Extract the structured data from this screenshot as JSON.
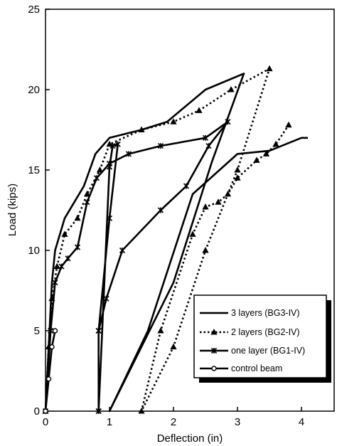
{
  "chart_data": {
    "type": "line",
    "title": "",
    "xlabel": "Deflection (in)",
    "ylabel": "Load (kips)",
    "xlim": [
      0,
      4.6
    ],
    "ylim": [
      0,
      25
    ],
    "xticks": [
      "0",
      "1",
      "2",
      "3",
      "4"
    ],
    "yticks": [
      "0",
      "5",
      "10",
      "15",
      "20",
      "25"
    ],
    "grid": false,
    "legend_position": "bottom-right",
    "series": [
      {
        "name": "3 layers (BG3-IV)",
        "style": "solid",
        "marker": "none",
        "points": [
          [
            0,
            0
          ],
          [
            0.05,
            4
          ],
          [
            0.1,
            8
          ],
          [
            0.15,
            10
          ],
          [
            0.3,
            12
          ],
          [
            0.6,
            14
          ],
          [
            0.78,
            16
          ],
          [
            1.0,
            17
          ],
          [
            1.5,
            17.5
          ],
          [
            1.9,
            18
          ],
          [
            2.2,
            19
          ],
          [
            2.5,
            20
          ],
          [
            3.1,
            21
          ],
          [
            2.6,
            15.5
          ],
          [
            2.0,
            8
          ],
          [
            1.0,
            0
          ],
          [
            1.6,
            5
          ],
          [
            2.3,
            13.5
          ],
          [
            3.0,
            16
          ],
          [
            3.5,
            16.2
          ],
          [
            4.0,
            17
          ],
          [
            4.1,
            17
          ]
        ]
      },
      {
        "name": "2 layers (BG2-IV)",
        "style": "dotted",
        "marker": "triangle",
        "points": [
          [
            0,
            0
          ],
          [
            0.05,
            4
          ],
          [
            0.1,
            7
          ],
          [
            0.18,
            9
          ],
          [
            0.3,
            11
          ],
          [
            0.5,
            12
          ],
          [
            0.65,
            13.5
          ],
          [
            0.85,
            15
          ],
          [
            1.0,
            16.6
          ],
          [
            1.5,
            17.5
          ],
          [
            2.0,
            18
          ],
          [
            2.4,
            18.7
          ],
          [
            2.9,
            20
          ],
          [
            3.5,
            21.3
          ],
          [
            3.0,
            15
          ],
          [
            2.5,
            10
          ],
          [
            2.0,
            4
          ],
          [
            1.5,
            0
          ],
          [
            1.8,
            5
          ],
          [
            2.3,
            11
          ],
          [
            2.5,
            12.7
          ],
          [
            2.7,
            13
          ],
          [
            2.85,
            13.5
          ],
          [
            3.0,
            14.5
          ],
          [
            3.3,
            15.6
          ],
          [
            3.45,
            16
          ],
          [
            3.6,
            16.6
          ],
          [
            3.8,
            17.8
          ]
        ]
      },
      {
        "name": "one layer (BG1-IV)",
        "style": "solid",
        "marker": "asterisk",
        "points": [
          [
            0,
            0
          ],
          [
            0.08,
            5
          ],
          [
            0.15,
            8
          ],
          [
            0.25,
            9
          ],
          [
            0.35,
            9.5
          ],
          [
            0.5,
            10.2
          ],
          [
            0.65,
            13
          ],
          [
            0.8,
            14.5
          ],
          [
            1.0,
            15.4
          ],
          [
            1.3,
            16
          ],
          [
            1.8,
            16.5
          ],
          [
            2.5,
            17
          ],
          [
            2.85,
            18
          ],
          [
            2.55,
            16.5
          ],
          [
            2.2,
            14
          ],
          [
            1.8,
            12.5
          ],
          [
            1.2,
            10
          ],
          [
            0.95,
            7
          ],
          [
            0.83,
            5
          ],
          [
            0.83,
            0
          ],
          [
            0.83,
            5
          ],
          [
            1.0,
            12
          ],
          [
            1.13,
            16.6
          ],
          [
            1.05,
            16.5
          ],
          [
            1.0,
            15.2
          ],
          [
            0.83,
            0
          ]
        ]
      },
      {
        "name": "control beam",
        "style": "solid",
        "marker": "circle",
        "points": [
          [
            0,
            0
          ],
          [
            0.05,
            2
          ],
          [
            0.1,
            4
          ],
          [
            0.15,
            5
          ]
        ]
      }
    ]
  }
}
